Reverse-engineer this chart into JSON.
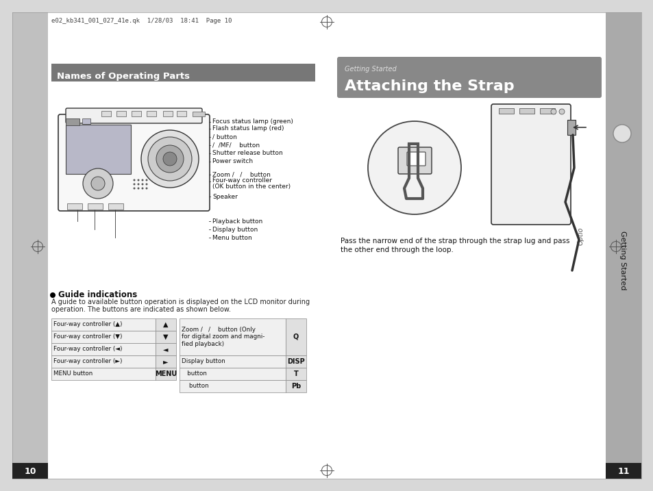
{
  "bg_color": "#d8d8d8",
  "page_bg": "#ffffff",
  "left_sidebar_color": "#c0c0c0",
  "right_sidebar_color": "#aaaaaa",
  "header_text": "e02_kb341_001_027_41e.qk  1/28/03  18:41  Page 10",
  "header_color": "#333333",
  "left_section_header": "Names of Operating Parts",
  "left_header_bg": "#777777",
  "right_section_header_small": "Getting Started",
  "right_section_header_large": "Attaching the Strap",
  "right_header_bg": "#888888",
  "guide_title": "Guide indications",
  "guide_body1": "A guide to available button operation is displayed on the LCD monitor during",
  "guide_body2": "operation. The buttons are indicated as shown below.",
  "label_focus": "Focus status lamp (green)",
  "label_flash": "Flash status lamp (red)",
  "label_sel": "/ button",
  "label_mode": "/  /MF/    button",
  "label_shutter": "Shutter release button",
  "label_power": "Power switch",
  "label_zoom": "Zoom /   /    button",
  "label_fourway": "Four-way controller",
  "label_fourway2": "(OK button in the center)",
  "label_speaker": "Speaker",
  "label_playback": "Playback button",
  "label_display": "Display button",
  "label_menu": "Menu button",
  "strap_caption1": "Pass the narrow end of the strap through the strap lug and pass",
  "strap_caption2": "the other end through the loop.",
  "tbl_left_labels": [
    "Four-way controller (",
    "Four-way controller (",
    "Four-way controller (",
    "Four-way controller (",
    "MENU button"
  ],
  "tbl_left_arrows": [
    "▲",
    "▼",
    "◄",
    "►",
    ""
  ],
  "tbl_left_icons": [
    "▲",
    "▼",
    "◄",
    "►",
    "MENU"
  ],
  "tbl_right_labels": [
    "Zoom /   /    button (Only\nfor digital zoom and magni-\nfied playback)",
    "Display button",
    "   button",
    "    button"
  ],
  "tbl_right_icons": [
    "Q",
    "DISP",
    "T",
    "Pb"
  ],
  "page_left": "10",
  "page_right": "11",
  "side_tab": "Getting Started"
}
